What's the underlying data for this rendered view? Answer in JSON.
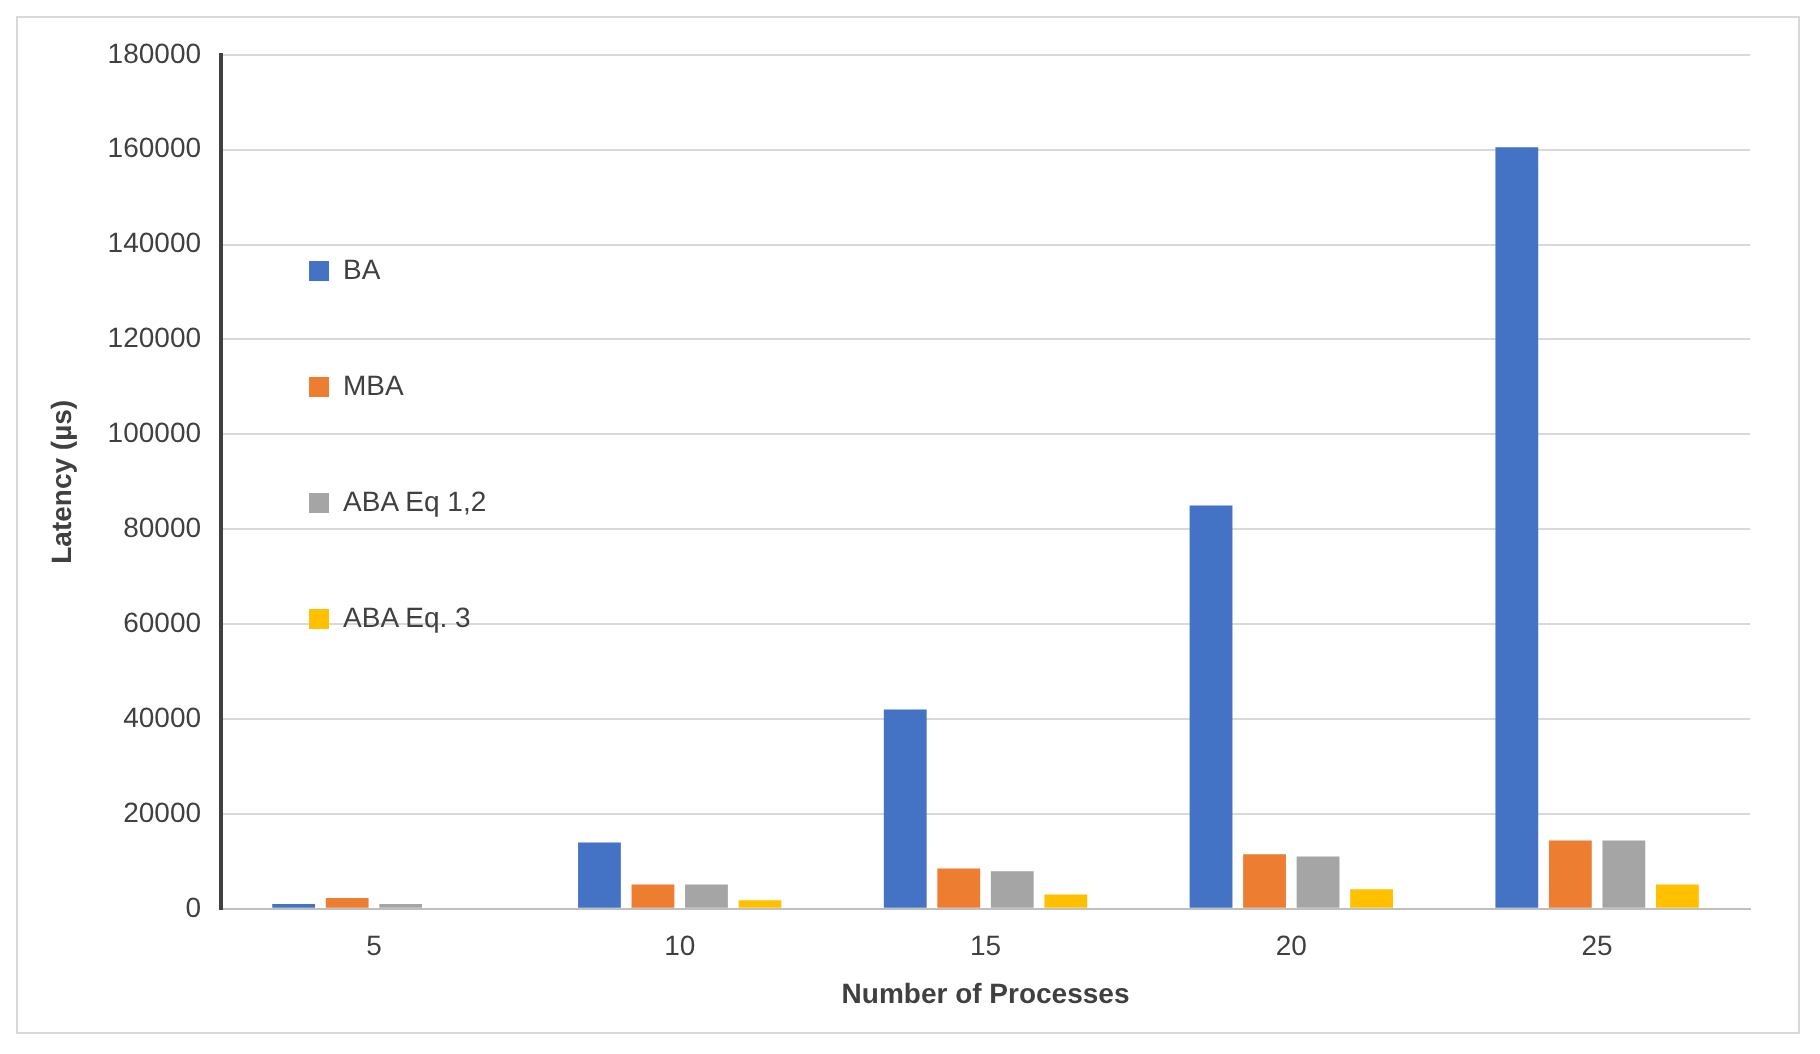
{
  "chart_data": {
    "type": "bar",
    "xlabel": "Number of Processes",
    "ylabel": "Latency (µs)",
    "categories": [
      "5",
      "10",
      "15",
      "20",
      "25"
    ],
    "series": [
      {
        "name": "BA",
        "color": "#4472c4",
        "values": [
          1000,
          14000,
          42000,
          85000,
          160500
        ]
      },
      {
        "name": "MBA",
        "color": "#ed7d31",
        "values": [
          2300,
          5100,
          8500,
          11500,
          14400
        ]
      },
      {
        "name": "ABA Eq 1,2",
        "color": "#a5a5a5",
        "values": [
          1000,
          5100,
          7900,
          11000,
          14400
        ]
      },
      {
        "name": "ABA Eq. 3",
        "color": "#ffc000",
        "values": [
          0,
          1800,
          3000,
          4100,
          5100
        ]
      }
    ],
    "ylim": [
      0,
      180000
    ],
    "yticks": [
      0,
      20000,
      40000,
      60000,
      80000,
      100000,
      120000,
      140000,
      160000,
      180000
    ],
    "grid": "y",
    "legend": "top"
  }
}
